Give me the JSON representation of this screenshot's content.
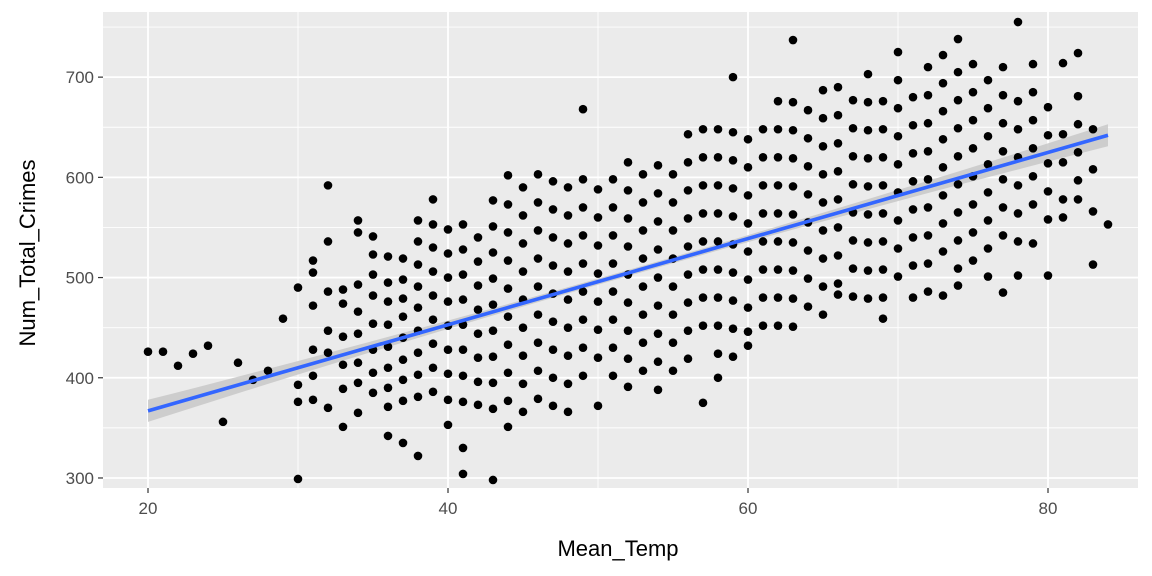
{
  "chart_data": {
    "type": "scatter",
    "title": "",
    "xlabel": "Mean_Temp",
    "ylabel": "Num_Total_Crimes",
    "xlim": [
      17,
      86
    ],
    "ylim": [
      290,
      765
    ],
    "x_ticks": [
      20,
      40,
      60,
      80
    ],
    "y_ticks": [
      300,
      400,
      500,
      600,
      700
    ],
    "grid": true,
    "legend": "none",
    "colors": {
      "panel": "#ebebeb",
      "grid": "#ffffff",
      "points": "#000000",
      "trend": "#3366ff",
      "band": "#c8c8c8"
    },
    "trend": {
      "method": "linear",
      "x": [
        20,
        84
      ],
      "y": [
        367,
        642
      ],
      "ci_halfwidth_ends": 11,
      "ci_halfwidth_center": 3
    },
    "points": [
      [
        20,
        426
      ],
      [
        21,
        426
      ],
      [
        22,
        412
      ],
      [
        23,
        424
      ],
      [
        24,
        432
      ],
      [
        25,
        356
      ],
      [
        26,
        415
      ],
      [
        27,
        398
      ],
      [
        28,
        407
      ],
      [
        29,
        459
      ],
      [
        30,
        299
      ],
      [
        30,
        490
      ],
      [
        30,
        393
      ],
      [
        30,
        376
      ],
      [
        31,
        517
      ],
      [
        31,
        505
      ],
      [
        31,
        472
      ],
      [
        31,
        428
      ],
      [
        31,
        402
      ],
      [
        31,
        378
      ],
      [
        32,
        592
      ],
      [
        32,
        536
      ],
      [
        32,
        486
      ],
      [
        32,
        447
      ],
      [
        32,
        425
      ],
      [
        32,
        370
      ],
      [
        33,
        488
      ],
      [
        33,
        474
      ],
      [
        33,
        441
      ],
      [
        33,
        413
      ],
      [
        33,
        389
      ],
      [
        33,
        351
      ],
      [
        34,
        557
      ],
      [
        34,
        545
      ],
      [
        34,
        493
      ],
      [
        34,
        466
      ],
      [
        34,
        444
      ],
      [
        34,
        415
      ],
      [
        34,
        395
      ],
      [
        34,
        365
      ],
      [
        35,
        541
      ],
      [
        35,
        523
      ],
      [
        35,
        503
      ],
      [
        35,
        482
      ],
      [
        35,
        454
      ],
      [
        35,
        428
      ],
      [
        35,
        405
      ],
      [
        35,
        385
      ],
      [
        36,
        521
      ],
      [
        36,
        495
      ],
      [
        36,
        476
      ],
      [
        36,
        453
      ],
      [
        36,
        431
      ],
      [
        36,
        410
      ],
      [
        36,
        390
      ],
      [
        36,
        371
      ],
      [
        36,
        342
      ],
      [
        37,
        519
      ],
      [
        37,
        498
      ],
      [
        37,
        479
      ],
      [
        37,
        461
      ],
      [
        37,
        440
      ],
      [
        37,
        418
      ],
      [
        37,
        398
      ],
      [
        37,
        377
      ],
      [
        37,
        335
      ],
      [
        38,
        557
      ],
      [
        38,
        536
      ],
      [
        38,
        513
      ],
      [
        38,
        491
      ],
      [
        38,
        470
      ],
      [
        38,
        447
      ],
      [
        38,
        425
      ],
      [
        38,
        403
      ],
      [
        38,
        381
      ],
      [
        38,
        322
      ],
      [
        39,
        578
      ],
      [
        39,
        553
      ],
      [
        39,
        530
      ],
      [
        39,
        506
      ],
      [
        39,
        482
      ],
      [
        39,
        458
      ],
      [
        39,
        434
      ],
      [
        39,
        410
      ],
      [
        39,
        386
      ],
      [
        40,
        548
      ],
      [
        40,
        524
      ],
      [
        40,
        500
      ],
      [
        40,
        476
      ],
      [
        40,
        452
      ],
      [
        40,
        428
      ],
      [
        40,
        404
      ],
      [
        40,
        378
      ],
      [
        40,
        353
      ],
      [
        41,
        553
      ],
      [
        41,
        528
      ],
      [
        41,
        503
      ],
      [
        41,
        478
      ],
      [
        41,
        453
      ],
      [
        41,
        428
      ],
      [
        41,
        402
      ],
      [
        41,
        376
      ],
      [
        41,
        330
      ],
      [
        41,
        304
      ],
      [
        42,
        540
      ],
      [
        42,
        516
      ],
      [
        42,
        492
      ],
      [
        42,
        468
      ],
      [
        42,
        444
      ],
      [
        42,
        420
      ],
      [
        42,
        396
      ],
      [
        42,
        373
      ],
      [
        43,
        577
      ],
      [
        43,
        551
      ],
      [
        43,
        525
      ],
      [
        43,
        499
      ],
      [
        43,
        473
      ],
      [
        43,
        447
      ],
      [
        43,
        421
      ],
      [
        43,
        395
      ],
      [
        43,
        369
      ],
      [
        43,
        298
      ],
      [
        44,
        602
      ],
      [
        44,
        573
      ],
      [
        44,
        545
      ],
      [
        44,
        517
      ],
      [
        44,
        489
      ],
      [
        44,
        461
      ],
      [
        44,
        433
      ],
      [
        44,
        405
      ],
      [
        44,
        377
      ],
      [
        44,
        351
      ],
      [
        45,
        590
      ],
      [
        45,
        562
      ],
      [
        45,
        534
      ],
      [
        45,
        506
      ],
      [
        45,
        478
      ],
      [
        45,
        450
      ],
      [
        45,
        422
      ],
      [
        45,
        394
      ],
      [
        45,
        366
      ],
      [
        46,
        603
      ],
      [
        46,
        575
      ],
      [
        46,
        547
      ],
      [
        46,
        519
      ],
      [
        46,
        491
      ],
      [
        46,
        463
      ],
      [
        46,
        435
      ],
      [
        46,
        407
      ],
      [
        46,
        379
      ],
      [
        47,
        596
      ],
      [
        47,
        568
      ],
      [
        47,
        540
      ],
      [
        47,
        512
      ],
      [
        47,
        484
      ],
      [
        47,
        456
      ],
      [
        47,
        428
      ],
      [
        47,
        400
      ],
      [
        47,
        372
      ],
      [
        48,
        590
      ],
      [
        48,
        562
      ],
      [
        48,
        534
      ],
      [
        48,
        506
      ],
      [
        48,
        478
      ],
      [
        48,
        450
      ],
      [
        48,
        422
      ],
      [
        48,
        394
      ],
      [
        48,
        366
      ],
      [
        49,
        668
      ],
      [
        49,
        598
      ],
      [
        49,
        570
      ],
      [
        49,
        542
      ],
      [
        49,
        514
      ],
      [
        49,
        486
      ],
      [
        49,
        458
      ],
      [
        49,
        430
      ],
      [
        49,
        402
      ],
      [
        50,
        588
      ],
      [
        50,
        560
      ],
      [
        50,
        532
      ],
      [
        50,
        504
      ],
      [
        50,
        476
      ],
      [
        50,
        448
      ],
      [
        50,
        420
      ],
      [
        50,
        372
      ],
      [
        51,
        598
      ],
      [
        51,
        570
      ],
      [
        51,
        542
      ],
      [
        51,
        514
      ],
      [
        51,
        486
      ],
      [
        51,
        458
      ],
      [
        51,
        430
      ],
      [
        51,
        402
      ],
      [
        52,
        615
      ],
      [
        52,
        587
      ],
      [
        52,
        559
      ],
      [
        52,
        531
      ],
      [
        52,
        503
      ],
      [
        52,
        475
      ],
      [
        52,
        447
      ],
      [
        52,
        419
      ],
      [
        52,
        391
      ],
      [
        53,
        603
      ],
      [
        53,
        575
      ],
      [
        53,
        547
      ],
      [
        53,
        519
      ],
      [
        53,
        491
      ],
      [
        53,
        463
      ],
      [
        53,
        435
      ],
      [
        53,
        407
      ],
      [
        54,
        612
      ],
      [
        54,
        584
      ],
      [
        54,
        556
      ],
      [
        54,
        528
      ],
      [
        54,
        500
      ],
      [
        54,
        472
      ],
      [
        54,
        444
      ],
      [
        54,
        416
      ],
      [
        54,
        388
      ],
      [
        55,
        603
      ],
      [
        55,
        575
      ],
      [
        55,
        547
      ],
      [
        55,
        519
      ],
      [
        55,
        491
      ],
      [
        55,
        463
      ],
      [
        55,
        435
      ],
      [
        55,
        407
      ],
      [
        56,
        643
      ],
      [
        56,
        615
      ],
      [
        56,
        587
      ],
      [
        56,
        559
      ],
      [
        56,
        531
      ],
      [
        56,
        503
      ],
      [
        56,
        475
      ],
      [
        56,
        447
      ],
      [
        56,
        419
      ],
      [
        57,
        648
      ],
      [
        57,
        620
      ],
      [
        57,
        592
      ],
      [
        57,
        564
      ],
      [
        57,
        536
      ],
      [
        57,
        508
      ],
      [
        57,
        480
      ],
      [
        57,
        452
      ],
      [
        57,
        375
      ],
      [
        58,
        648
      ],
      [
        58,
        620
      ],
      [
        58,
        592
      ],
      [
        58,
        564
      ],
      [
        58,
        536
      ],
      [
        58,
        508
      ],
      [
        58,
        480
      ],
      [
        58,
        452
      ],
      [
        58,
        424
      ],
      [
        58,
        400
      ],
      [
        59,
        700
      ],
      [
        59,
        645
      ],
      [
        59,
        617
      ],
      [
        59,
        589
      ],
      [
        59,
        561
      ],
      [
        59,
        533
      ],
      [
        59,
        505
      ],
      [
        59,
        477
      ],
      [
        59,
        449
      ],
      [
        59,
        421
      ],
      [
        60,
        638
      ],
      [
        60,
        610
      ],
      [
        60,
        582
      ],
      [
        60,
        554
      ],
      [
        60,
        526
      ],
      [
        60,
        498
      ],
      [
        60,
        470
      ],
      [
        60,
        446
      ],
      [
        60,
        432
      ],
      [
        61,
        648
      ],
      [
        61,
        620
      ],
      [
        61,
        592
      ],
      [
        61,
        564
      ],
      [
        61,
        536
      ],
      [
        61,
        508
      ],
      [
        61,
        480
      ],
      [
        61,
        452
      ],
      [
        62,
        676
      ],
      [
        62,
        648
      ],
      [
        62,
        620
      ],
      [
        62,
        592
      ],
      [
        62,
        564
      ],
      [
        62,
        536
      ],
      [
        62,
        508
      ],
      [
        62,
        480
      ],
      [
        62,
        452
      ],
      [
        63,
        737
      ],
      [
        63,
        675
      ],
      [
        63,
        647
      ],
      [
        63,
        619
      ],
      [
        63,
        591
      ],
      [
        63,
        563
      ],
      [
        63,
        535
      ],
      [
        63,
        507
      ],
      [
        63,
        479
      ],
      [
        63,
        451
      ],
      [
        64,
        667
      ],
      [
        64,
        639
      ],
      [
        64,
        611
      ],
      [
        64,
        583
      ],
      [
        64,
        555
      ],
      [
        64,
        527
      ],
      [
        64,
        499
      ],
      [
        64,
        471
      ],
      [
        65,
        687
      ],
      [
        65,
        659
      ],
      [
        65,
        631
      ],
      [
        65,
        603
      ],
      [
        65,
        575
      ],
      [
        65,
        547
      ],
      [
        65,
        519
      ],
      [
        65,
        491
      ],
      [
        65,
        463
      ],
      [
        66,
        690
      ],
      [
        66,
        662
      ],
      [
        66,
        634
      ],
      [
        66,
        606
      ],
      [
        66,
        578
      ],
      [
        66,
        550
      ],
      [
        66,
        522
      ],
      [
        66,
        494
      ],
      [
        66,
        483
      ],
      [
        67,
        677
      ],
      [
        67,
        649
      ],
      [
        67,
        621
      ],
      [
        67,
        593
      ],
      [
        67,
        565
      ],
      [
        67,
        537
      ],
      [
        67,
        509
      ],
      [
        67,
        481
      ],
      [
        68,
        703
      ],
      [
        68,
        675
      ],
      [
        68,
        647
      ],
      [
        68,
        619
      ],
      [
        68,
        591
      ],
      [
        68,
        563
      ],
      [
        68,
        535
      ],
      [
        68,
        507
      ],
      [
        68,
        479
      ],
      [
        69,
        676
      ],
      [
        69,
        648
      ],
      [
        69,
        620
      ],
      [
        69,
        592
      ],
      [
        69,
        564
      ],
      [
        69,
        536
      ],
      [
        69,
        508
      ],
      [
        69,
        480
      ],
      [
        69,
        459
      ],
      [
        70,
        725
      ],
      [
        70,
        697
      ],
      [
        70,
        669
      ],
      [
        70,
        641
      ],
      [
        70,
        613
      ],
      [
        70,
        585
      ],
      [
        70,
        557
      ],
      [
        70,
        529
      ],
      [
        70,
        501
      ],
      [
        71,
        680
      ],
      [
        71,
        652
      ],
      [
        71,
        624
      ],
      [
        71,
        596
      ],
      [
        71,
        568
      ],
      [
        71,
        540
      ],
      [
        71,
        512
      ],
      [
        71,
        480
      ],
      [
        72,
        710
      ],
      [
        72,
        682
      ],
      [
        72,
        654
      ],
      [
        72,
        626
      ],
      [
        72,
        598
      ],
      [
        72,
        570
      ],
      [
        72,
        542
      ],
      [
        72,
        514
      ],
      [
        72,
        486
      ],
      [
        73,
        722
      ],
      [
        73,
        694
      ],
      [
        73,
        666
      ],
      [
        73,
        638
      ],
      [
        73,
        610
      ],
      [
        73,
        582
      ],
      [
        73,
        554
      ],
      [
        73,
        526
      ],
      [
        73,
        482
      ],
      [
        74,
        738
      ],
      [
        74,
        705
      ],
      [
        74,
        677
      ],
      [
        74,
        649
      ],
      [
        74,
        621
      ],
      [
        74,
        593
      ],
      [
        74,
        565
      ],
      [
        74,
        537
      ],
      [
        74,
        509
      ],
      [
        74,
        492
      ],
      [
        75,
        713
      ],
      [
        75,
        685
      ],
      [
        75,
        657
      ],
      [
        75,
        629
      ],
      [
        75,
        601
      ],
      [
        75,
        573
      ],
      [
        75,
        545
      ],
      [
        75,
        517
      ],
      [
        76,
        697
      ],
      [
        76,
        669
      ],
      [
        76,
        641
      ],
      [
        76,
        613
      ],
      [
        76,
        585
      ],
      [
        76,
        557
      ],
      [
        76,
        529
      ],
      [
        76,
        501
      ],
      [
        77,
        710
      ],
      [
        77,
        682
      ],
      [
        77,
        654
      ],
      [
        77,
        626
      ],
      [
        77,
        598
      ],
      [
        77,
        570
      ],
      [
        77,
        542
      ],
      [
        77,
        485
      ],
      [
        78,
        755
      ],
      [
        78,
        676
      ],
      [
        78,
        648
      ],
      [
        78,
        620
      ],
      [
        78,
        592
      ],
      [
        78,
        564
      ],
      [
        78,
        536
      ],
      [
        78,
        502
      ],
      [
        79,
        713
      ],
      [
        79,
        685
      ],
      [
        79,
        657
      ],
      [
        79,
        629
      ],
      [
        79,
        601
      ],
      [
        79,
        573
      ],
      [
        79,
        534
      ],
      [
        80,
        670
      ],
      [
        80,
        642
      ],
      [
        80,
        614
      ],
      [
        80,
        586
      ],
      [
        80,
        558
      ],
      [
        80,
        502
      ],
      [
        81,
        714
      ],
      [
        81,
        643
      ],
      [
        81,
        615
      ],
      [
        81,
        578
      ],
      [
        81,
        560
      ],
      [
        82,
        724
      ],
      [
        82,
        681
      ],
      [
        82,
        653
      ],
      [
        82,
        625
      ],
      [
        82,
        597
      ],
      [
        82,
        578
      ],
      [
        83,
        648
      ],
      [
        83,
        608
      ],
      [
        83,
        566
      ],
      [
        83,
        513
      ],
      [
        84,
        553
      ]
    ]
  }
}
